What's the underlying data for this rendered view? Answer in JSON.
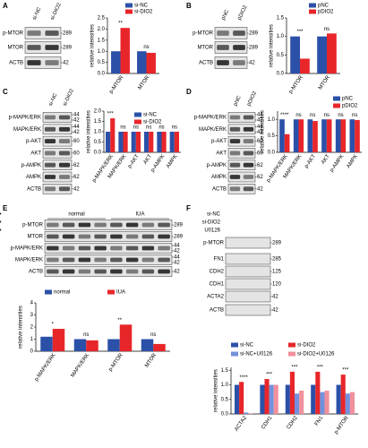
{
  "panel_labels": [
    "A",
    "B",
    "C",
    "D",
    "E",
    "F"
  ],
  "blots": [
    {
      "lanes": [
        "si-NC",
        "si-DIO2"
      ],
      "rows": [
        {
          "name": "p-MTOR",
          "sizes": [
            "289"
          ]
        },
        {
          "name": "MTOR",
          "sizes": [
            "289"
          ]
        },
        {
          "name": "ACTB",
          "sizes": [
            "42"
          ]
        }
      ]
    },
    {
      "lanes": [
        "pNC",
        "pDIO2"
      ],
      "rows": [
        {
          "name": "p-MTOR",
          "sizes": [
            "289"
          ]
        },
        {
          "name": "MTOR",
          "sizes": [
            "289"
          ]
        },
        {
          "name": "ACTB",
          "sizes": [
            "42"
          ]
        }
      ]
    },
    {
      "lanes": [
        "si-NC",
        "si-DIO2"
      ],
      "rows": [
        {
          "name": "p-MAPK/ERK",
          "sizes": [
            "44",
            "42"
          ]
        },
        {
          "name": "MAPK/ERK",
          "sizes": [
            "44",
            "42"
          ]
        },
        {
          "name": "p-AKT",
          "sizes": [
            "60"
          ]
        },
        {
          "name": "AKT",
          "sizes": [
            "60"
          ]
        },
        {
          "name": "p-AMPK",
          "sizes": [
            "62"
          ]
        },
        {
          "name": "AMPK",
          "sizes": [
            "62"
          ]
        },
        {
          "name": "ACTB",
          "sizes": [
            "42"
          ]
        }
      ]
    },
    {
      "lanes": [
        "pNC",
        "pDIO2"
      ],
      "rows": [
        {
          "name": "p-MAPK/ERK",
          "sizes": [
            "44",
            "42"
          ]
        },
        {
          "name": "MAPK/ERK",
          "sizes": [
            "44",
            "42"
          ]
        },
        {
          "name": "p-AKT",
          "sizes": [
            "60"
          ]
        },
        {
          "name": "AKT",
          "sizes": [
            "60"
          ]
        },
        {
          "name": "p-AMPK",
          "sizes": [
            "62"
          ]
        },
        {
          "name": "AMPK",
          "sizes": [
            "62"
          ]
        },
        {
          "name": "ACTB",
          "sizes": [
            "42"
          ]
        }
      ]
    },
    {
      "groups": [
        "normal",
        "IUA"
      ],
      "rows": [
        {
          "name": "p-MTOR",
          "sizes": [
            "289"
          ]
        },
        {
          "name": "MTOR",
          "sizes": [
            "289"
          ]
        },
        {
          "name": "p-MAPK/ERK",
          "sizes": [
            "44",
            "42"
          ]
        },
        {
          "name": "MAPK/ERK",
          "sizes": [
            "44",
            "42"
          ]
        },
        {
          "name": "ACTB",
          "sizes": [
            "42"
          ]
        }
      ]
    },
    {
      "treatments": [
        {
          "name": "si-NC",
          "signs": [
            "+",
            "-",
            "+",
            "-"
          ]
        },
        {
          "name": "si-DIO2",
          "signs": [
            "-",
            "+",
            "-",
            "+"
          ]
        },
        {
          "name": "U0126",
          "signs": [
            "-",
            "-",
            "+",
            "+"
          ]
        }
      ],
      "rows": [
        {
          "name": "p-MTOR",
          "sizes": [
            "289"
          ]
        },
        {
          "name": "FN1",
          "sizes": [
            "285"
          ]
        },
        {
          "name": "CDH2",
          "sizes": [
            "125"
          ]
        },
        {
          "name": "CDH1",
          "sizes": [
            "120"
          ]
        },
        {
          "name": "ACTA2",
          "sizes": [
            "42"
          ]
        },
        {
          "name": "ACTB",
          "sizes": [
            "42"
          ]
        }
      ]
    }
  ],
  "chart_data": [
    {
      "type": "bar",
      "ylabel": "relative intensities",
      "categories": [
        "p-MTOR",
        "MTOR"
      ],
      "series": [
        {
          "name": "si-NC",
          "color": "#2b50a8",
          "values": [
            1.0,
            1.0
          ]
        },
        {
          "name": "si-DIO2",
          "color": "#e8262a",
          "values": [
            2.05,
            0.93
          ]
        }
      ],
      "ylim": [
        0,
        2.5
      ],
      "yticks": [
        {
          "value": 0,
          "label": "0.0"
        },
        0.5,
        {
          "value": 1,
          "label": "1.0"
        },
        1.5,
        {
          "value": 2,
          "label": "2.0"
        },
        2.5
      ],
      "annotations": [
        "**",
        "ns"
      ]
    },
    {
      "type": "bar",
      "ylabel": "relative intensities",
      "categories": [
        "p-MTOR",
        "MTOR"
      ],
      "series": [
        {
          "name": "pNC",
          "color": "#2b50a8",
          "values": [
            1.0,
            1.0
          ]
        },
        {
          "name": "pDIO2",
          "color": "#e8262a",
          "values": [
            0.4,
            1.08
          ]
        }
      ],
      "ylim": [
        0,
        1.5
      ],
      "yticks": [
        {
          "value": 0,
          "label": "0.0"
        },
        0.5,
        {
          "value": 1,
          "label": "1.0"
        },
        1.5
      ],
      "annotations": [
        "***",
        "ns"
      ]
    },
    {
      "type": "bar",
      "ylabel": "relative intensities",
      "categories": [
        "p-MAPK/ERK",
        "MAPK/ERK",
        "p-AKT",
        "AKT",
        "p-AMPK",
        "AMPK"
      ],
      "series": [
        {
          "name": "si-NC",
          "color": "#2b50a8",
          "values": [
            1.0,
            1.0,
            1.0,
            1.0,
            1.0,
            1.0
          ]
        },
        {
          "name": "si-DIO2",
          "color": "#e8262a",
          "values": [
            1.65,
            1.0,
            1.0,
            1.0,
            1.0,
            1.0
          ]
        }
      ],
      "ylim": [
        0,
        2.0
      ],
      "yticks": [
        {
          "value": 0,
          "label": "0.0"
        },
        0.5,
        {
          "value": 1,
          "label": "1.0"
        },
        1.5,
        {
          "value": 2,
          "label": "2.0"
        }
      ],
      "annotations": [
        "***",
        "ns",
        "ns",
        "ns",
        "ns",
        "ns"
      ]
    },
    {
      "type": "bar",
      "ylabel": "relative intensities",
      "categories": [
        "p-MAPK/ERK",
        "MAPK/ERK",
        "p-AKT",
        "AKT",
        "p-AMPK",
        "AMPK"
      ],
      "series": [
        {
          "name": "pNC",
          "color": "#2b50a8",
          "values": [
            1.0,
            1.0,
            1.0,
            1.0,
            1.0,
            1.0
          ]
        },
        {
          "name": "pDIO2",
          "color": "#e8262a",
          "values": [
            0.55,
            1.0,
            0.95,
            1.0,
            1.0,
            0.98
          ]
        }
      ],
      "ylim": [
        0,
        1.25
      ],
      "yticks": [
        {
          "value": 0,
          "label": "0.0"
        },
        0.5,
        {
          "value": 1,
          "label": "1.0"
        }
      ],
      "annotations": [
        "****",
        "ns",
        "ns",
        "ns",
        "ns",
        "ns"
      ]
    },
    {
      "type": "bar",
      "ylabel": "relative intensities",
      "categories": [
        "p-MAPK/ERK",
        "MAPK/ERK",
        "p-MTOR",
        "MTOR"
      ],
      "series": [
        {
          "name": "normal",
          "color": "#2b50a8",
          "values": [
            1.2,
            1.0,
            1.0,
            1.0
          ]
        },
        {
          "name": "IUA",
          "color": "#e8262a",
          "values": [
            1.85,
            0.9,
            2.2,
            0.6
          ]
        }
      ],
      "ylim": [
        0,
        4
      ],
      "yticks": [
        0,
        1,
        2,
        3,
        4
      ],
      "annotations": [
        "*",
        "ns",
        "**",
        "ns"
      ]
    },
    {
      "type": "bar",
      "ylabel": "relative intensities",
      "categories": [
        "ACTA2",
        "CDH1",
        "CDH2",
        "FN1",
        "p-MTOR"
      ],
      "series": [
        {
          "name": "si-NC",
          "color": "#2b50a8",
          "values": [
            1.0,
            1.0,
            1.0,
            1.0,
            1.0
          ]
        },
        {
          "name": "si-DIO2",
          "color": "#e8262a",
          "values": [
            1.1,
            1.2,
            1.45,
            1.45,
            1.35
          ]
        },
        {
          "name": "si-NC+U0126",
          "color": "#7391dc",
          "values": [
            0.05,
            1.0,
            0.7,
            0.75,
            0.7
          ]
        },
        {
          "name": "si-DIO2+U0126",
          "color": "#f2909c",
          "values": [
            0.02,
            1.0,
            0.8,
            0.8,
            0.75
          ]
        }
      ],
      "ylim": [
        0,
        1.6
      ],
      "yticks": [
        {
          "value": 0,
          "label": "0.0"
        },
        0.5,
        {
          "value": 1,
          "label": "1.0"
        },
        1.5
      ],
      "annotations": [
        "****",
        "***",
        "***",
        "***",
        "***"
      ]
    }
  ]
}
